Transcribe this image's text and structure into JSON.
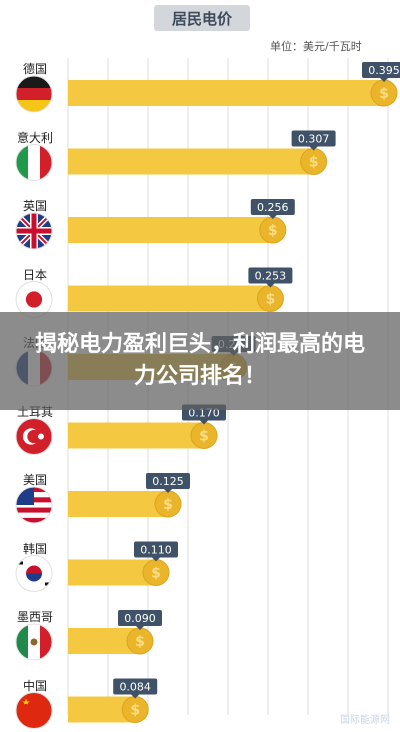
{
  "page": {
    "overlay_text": "揭秘电力盈利巨头，利润最高的电力公司排名！",
    "watermark": "国际能源网"
  },
  "chart_data": {
    "type": "bar",
    "orientation": "horizontal",
    "title": "居民电价",
    "unit_label": "单位：美元/千瓦时",
    "categories": [
      "德国",
      "意大利",
      "英国",
      "日本",
      "法国",
      "土耳其",
      "美国",
      "韩国",
      "墨西哥",
      "中国"
    ],
    "values": [
      0.395,
      0.307,
      0.256,
      0.253,
      0.207,
      0.17,
      0.125,
      0.11,
      0.09,
      0.084
    ],
    "value_labels": [
      "0.395",
      "0.307",
      "0.256",
      "0.253",
      "0.207",
      "0.170",
      "0.125",
      "0.110",
      "0.090",
      "0.084"
    ],
    "xlim": [
      0,
      0.4
    ],
    "grid": true,
    "legend": "none",
    "colors": {
      "bar": "#f5c842",
      "label_bg": "#3f5268",
      "coin": "#eab52a",
      "grid": "#dcdcdc"
    }
  }
}
